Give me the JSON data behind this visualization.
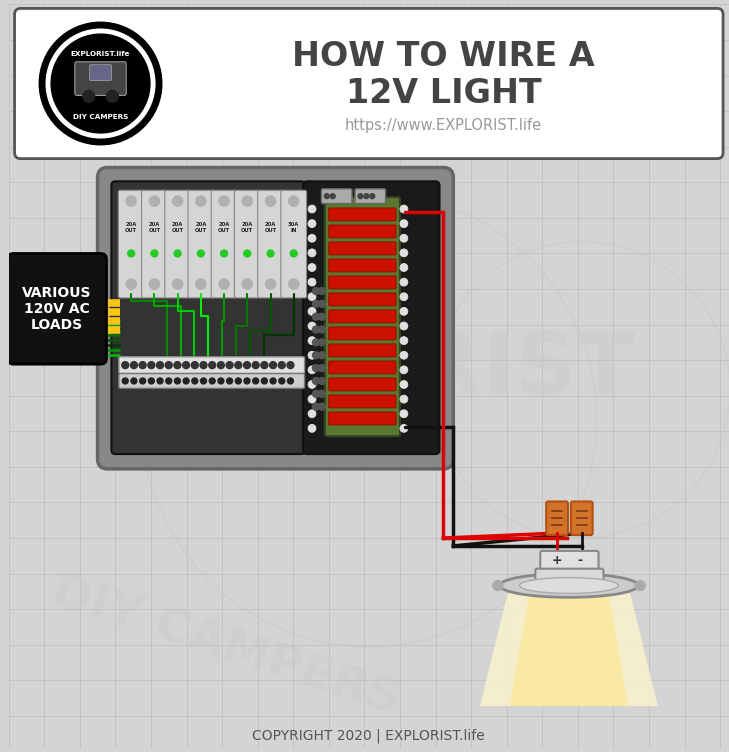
{
  "bg_color": "#d4d4d4",
  "header_bg": "#ffffff",
  "title_line1": "HOW TO WIRE A",
  "title_line2": "12V LIGHT",
  "subtitle": "https://www.EXPLORIST.life",
  "copyright": "COPYRIGHT 2020 | EXPLORIST.life",
  "panel_bg": "#888888",
  "panel_dark": "#222222",
  "breaker_color": "#cccccc",
  "green_board": "#6a8a3a",
  "red_color": "#dd0000",
  "black_color": "#111111",
  "yellow_color": "#f5c518",
  "orange_color": "#d4722a",
  "white_color": "#ffffff",
  "label_bg": "#111111",
  "label_text": "VARIOUS\n120V AC\nLOADS",
  "grid_color": "#c0c0c0",
  "panel_left_bg": "#333333",
  "panel_right_bg": "#1a1a1a",
  "breaker_body": "#d8d8d8",
  "green_wire1": "#006600",
  "green_wire2": "#009900",
  "green_wire3": "#00bb00",
  "terminal_white": "#e8e8e8",
  "terminal_dark": "#555555",
  "dot_color": "#333333"
}
